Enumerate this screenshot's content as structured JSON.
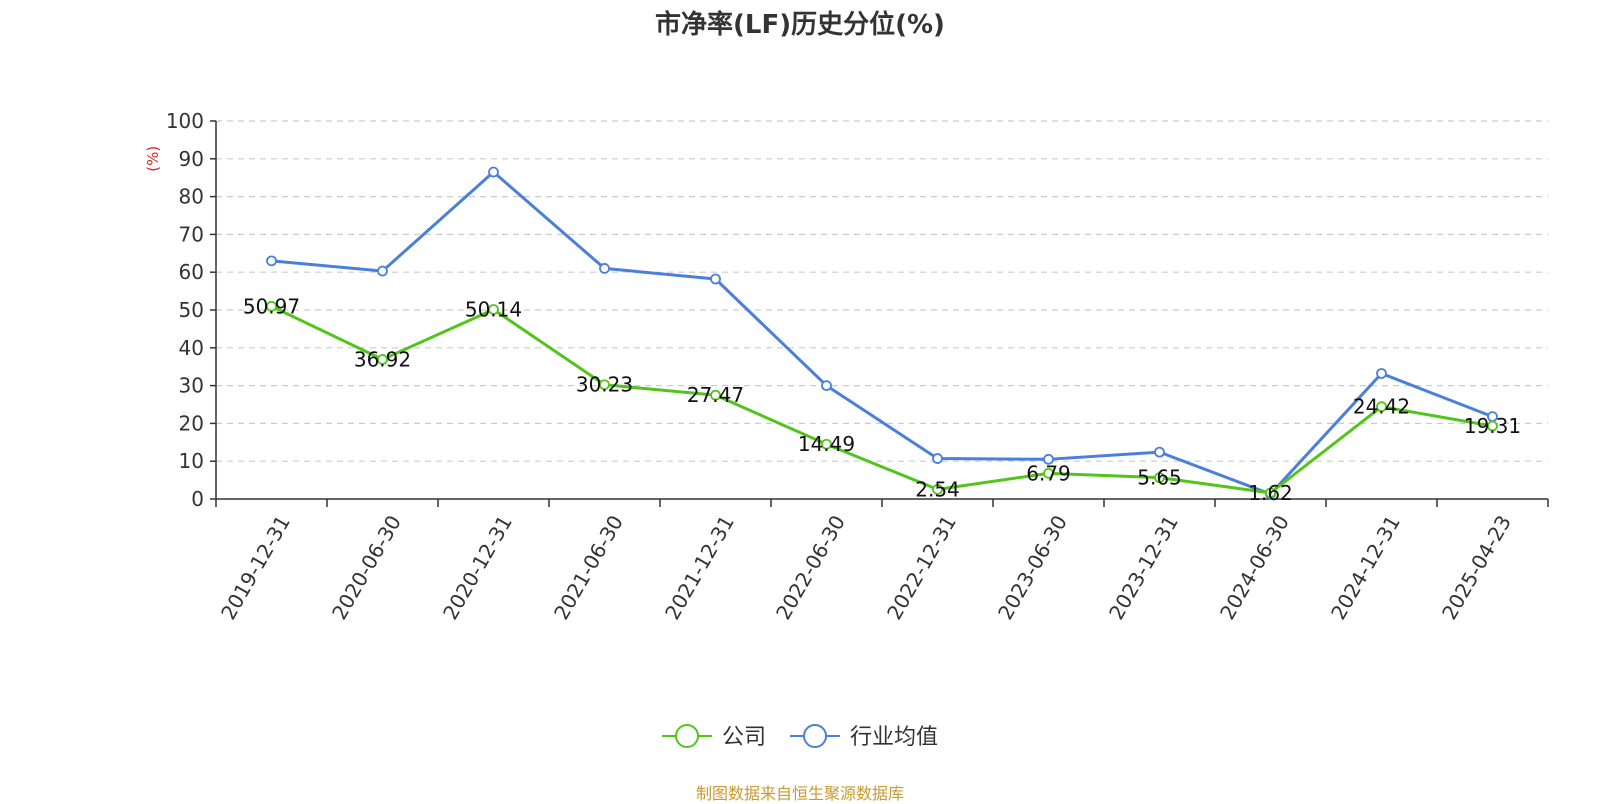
{
  "chart_data": {
    "type": "line",
    "title": "市净率(LF)历史分位(%)",
    "ylabel": "(%)",
    "xlabel": "",
    "ylim": [
      0,
      100
    ],
    "yticks": [
      0,
      10,
      20,
      30,
      40,
      50,
      60,
      70,
      80,
      90,
      100
    ],
    "categories": [
      "2019-12-31",
      "2020-06-30",
      "2020-12-31",
      "2021-06-30",
      "2021-12-31",
      "2022-06-30",
      "2022-12-31",
      "2023-06-30",
      "2023-12-31",
      "2024-06-30",
      "2024-12-31",
      "2025-04-23"
    ],
    "grid": true,
    "legend_position": "bottom",
    "series": [
      {
        "name": "公司",
        "color": "#52c41a",
        "values": [
          50.97,
          36.92,
          50.14,
          30.23,
          27.47,
          14.49,
          2.54,
          6.79,
          5.65,
          1.62,
          24.42,
          19.31
        ],
        "data_labels": [
          "50.97",
          "36.92",
          "50.14",
          "30.23",
          "27.47",
          "14.49",
          "2.54",
          "6.79",
          "5.65",
          "1.62",
          "24.42",
          "19.31"
        ]
      },
      {
        "name": "行业均值",
        "color": "#4a7fdb",
        "values": [
          63,
          60.3,
          86.5,
          61,
          58.2,
          30,
          10.7,
          10.5,
          12.4,
          1.3,
          33.2,
          21.8
        ]
      }
    ]
  },
  "footer": {
    "source": "制图数据来自恒生聚源数据库",
    "source_color": "#c99a2e"
  },
  "colors": {
    "unit_label": "#e02020",
    "axis": "#333333",
    "grid": "#cccccc"
  }
}
